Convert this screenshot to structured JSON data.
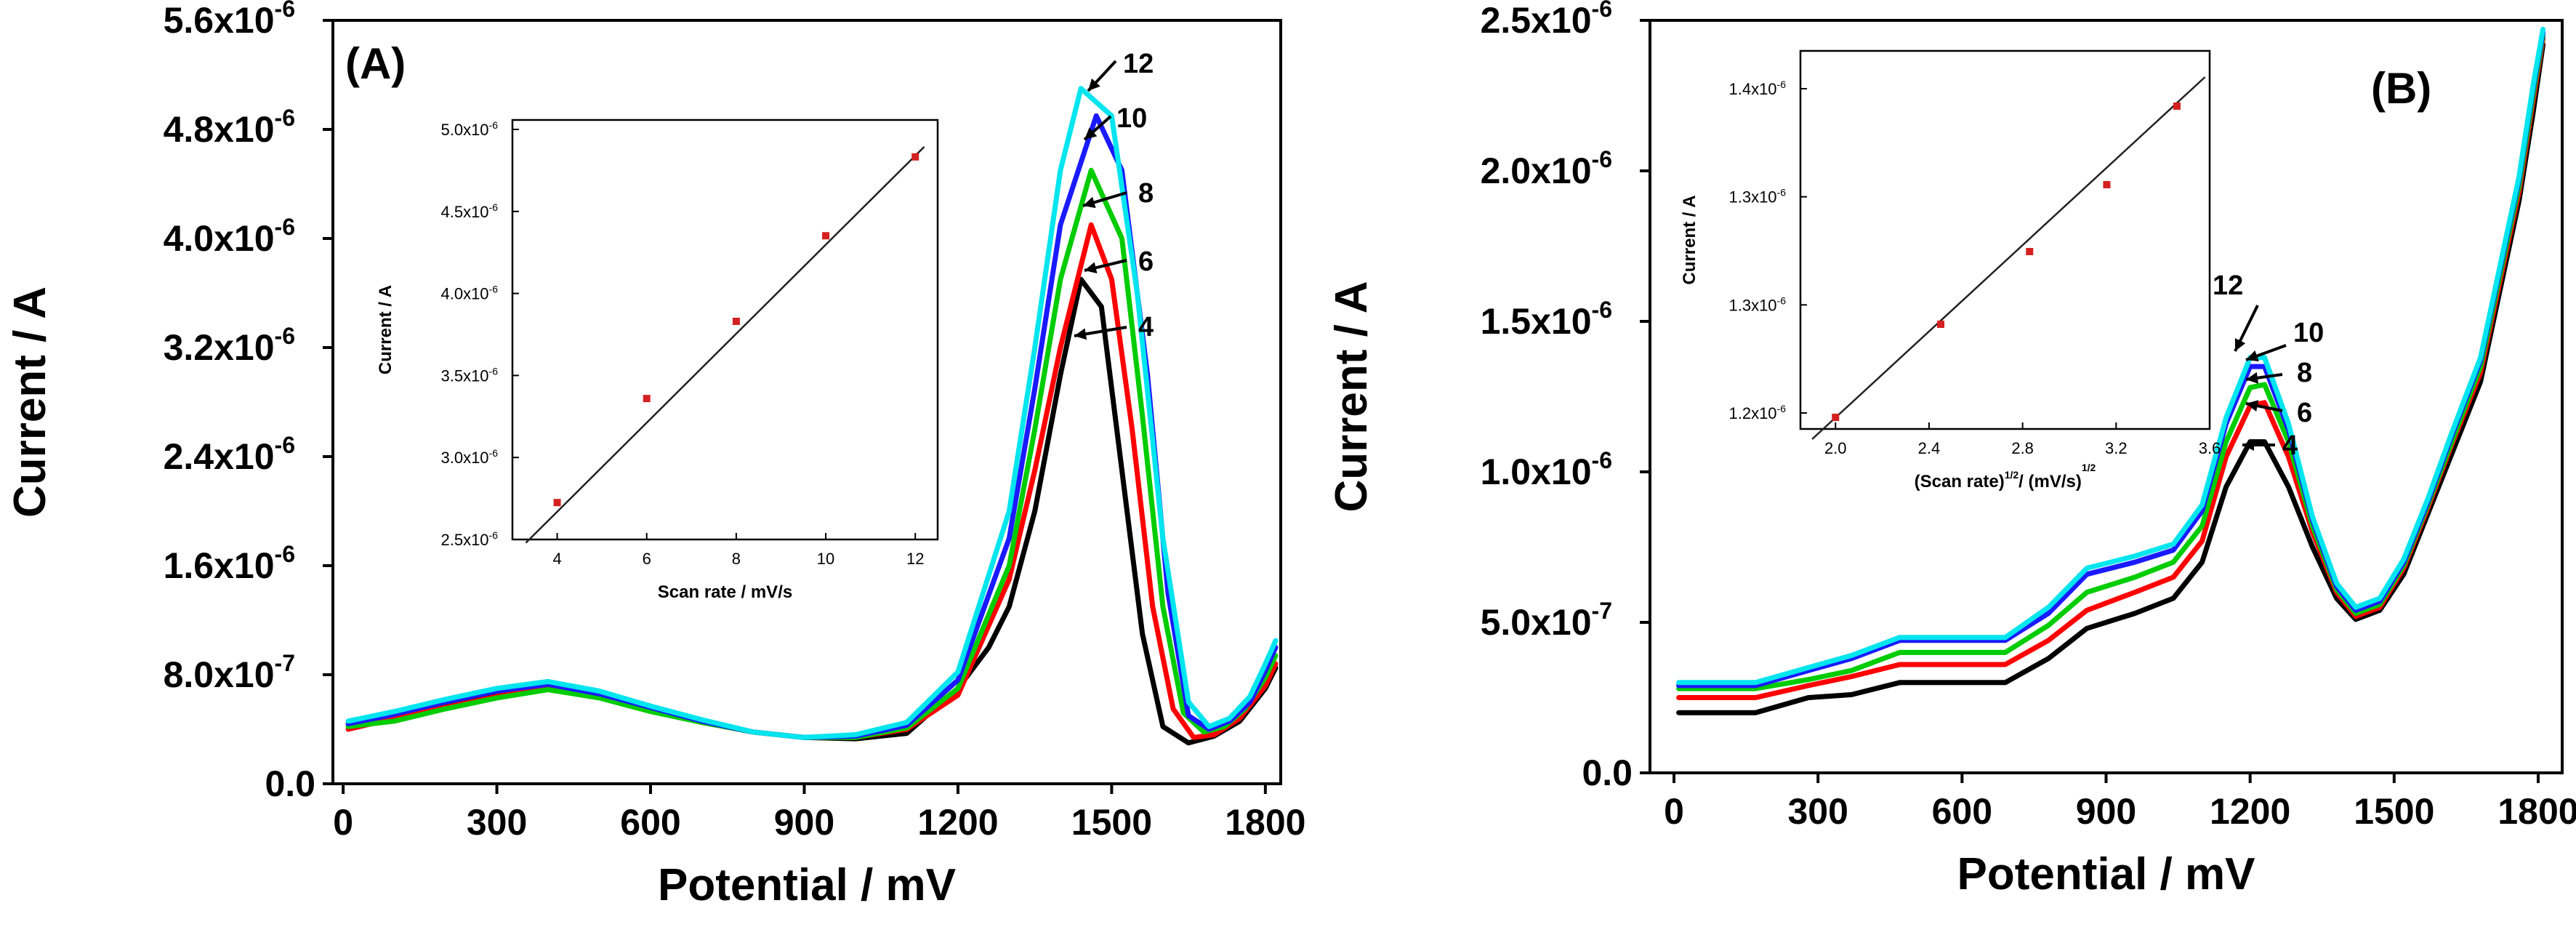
{
  "chart_data": [
    {
      "panel": "(A)",
      "type": "line",
      "xlabel": "Potential / mV",
      "ylabel": "Current / A",
      "xlim": [
        -20,
        1830
      ],
      "ylim": [
        0,
        5.6e-06
      ],
      "xticks": [
        0,
        300,
        600,
        900,
        1200,
        1500,
        1800
      ],
      "yticks": [
        {
          "mantissa": "0.0",
          "exp": ""
        },
        {
          "mantissa": "8.0x10",
          "exp": "-7"
        },
        {
          "mantissa": "1.6x10",
          "exp": "-6"
        },
        {
          "mantissa": "2.4x10",
          "exp": "-6"
        },
        {
          "mantissa": "3.2x10",
          "exp": "-6"
        },
        {
          "mantissa": "4.0x10",
          "exp": "-6"
        },
        {
          "mantissa": "4.8x10",
          "exp": "-6"
        },
        {
          "mantissa": "5.6x10",
          "exp": "-6"
        }
      ],
      "series": [
        {
          "name": "4",
          "color": "#000000",
          "x": [
            10,
            100,
            200,
            300,
            400,
            500,
            600,
            700,
            800,
            900,
            1000,
            1100,
            1200,
            1260,
            1300,
            1350,
            1400,
            1440,
            1480,
            1520,
            1560,
            1600,
            1650,
            1700,
            1750,
            1800,
            1820
          ],
          "y": [
            4.4e-07,
            5e-07,
            5.8e-07,
            6.6e-07,
            7.1e-07,
            6.5e-07,
            5.5e-07,
            4.6e-07,
            3.8e-07,
            3.4e-07,
            3.3e-07,
            3.7e-07,
            7e-07,
            1e-06,
            1.3e-06,
            2e-06,
            3e-06,
            3.7e-06,
            3.5e-06,
            2.3e-06,
            1.1e-06,
            4.2e-07,
            3e-07,
            3.5e-07,
            4.6e-07,
            7e-07,
            8.5e-07
          ]
        },
        {
          "name": "6",
          "color": "#ff0000",
          "x": [
            10,
            100,
            200,
            300,
            400,
            500,
            600,
            700,
            800,
            900,
            1000,
            1100,
            1200,
            1300,
            1350,
            1400,
            1460,
            1500,
            1540,
            1580,
            1620,
            1660,
            1700,
            1750,
            1800,
            1820
          ],
          "y": [
            4e-07,
            4.8e-07,
            5.6e-07,
            6.4e-07,
            7e-07,
            6.4e-07,
            5.4e-07,
            4.5e-07,
            3.8e-07,
            3.4e-07,
            3.4e-07,
            4e-07,
            6.5e-07,
            1.5e-06,
            2.3e-06,
            3.2e-06,
            4.1e-06,
            3.7e-06,
            2.6e-06,
            1.3e-06,
            5.5e-07,
            3.4e-07,
            3.6e-07,
            4.8e-07,
            7.2e-07,
            8.8e-07
          ]
        },
        {
          "name": "8",
          "color": "#00cc00",
          "x": [
            10,
            100,
            200,
            300,
            400,
            500,
            600,
            700,
            800,
            900,
            1000,
            1100,
            1200,
            1300,
            1350,
            1400,
            1460,
            1520,
            1560,
            1600,
            1640,
            1680,
            1720,
            1760,
            1800,
            1820
          ],
          "y": [
            4.2e-07,
            4.6e-07,
            5.5e-07,
            6.3e-07,
            6.9e-07,
            6.3e-07,
            5.3e-07,
            4.5e-07,
            3.8e-07,
            3.4e-07,
            3.4e-07,
            4.1e-07,
            7e-07,
            1.6e-06,
            2.6e-06,
            3.7e-06,
            4.5e-06,
            4e-06,
            2.7e-06,
            1.3e-06,
            5.2e-07,
            3.8e-07,
            4.2e-07,
            5.5e-07,
            7.8e-07,
            9.4e-07
          ]
        },
        {
          "name": "10",
          "color": "#1a1aff",
          "x": [
            10,
            100,
            200,
            300,
            400,
            500,
            600,
            700,
            800,
            900,
            1000,
            1100,
            1200,
            1300,
            1350,
            1400,
            1470,
            1520,
            1570,
            1610,
            1650,
            1690,
            1730,
            1770,
            1800,
            1820
          ],
          "y": [
            4.4e-07,
            5.1e-07,
            6e-07,
            6.8e-07,
            7.3e-07,
            6.6e-07,
            5.6e-07,
            4.6e-07,
            3.8e-07,
            3.4e-07,
            3.5e-07,
            4.3e-07,
            7.6e-07,
            1.8e-06,
            2.9e-06,
            4.1e-06,
            4.9e-06,
            4.5e-06,
            3e-06,
            1.4e-06,
            5e-07,
            4e-07,
            4.6e-07,
            6e-07,
            8.3e-07,
            1e-06
          ]
        },
        {
          "name": "12",
          "color": "#00e5ee",
          "x": [
            10,
            100,
            200,
            300,
            400,
            500,
            600,
            700,
            800,
            900,
            1000,
            1100,
            1200,
            1300,
            1350,
            1400,
            1440,
            1500,
            1550,
            1600,
            1650,
            1690,
            1730,
            1770,
            1800,
            1820
          ],
          "y": [
            4.6e-07,
            5.3e-07,
            6.2e-07,
            7e-07,
            7.5e-07,
            6.8e-07,
            5.7e-07,
            4.7e-07,
            3.8e-07,
            3.4e-07,
            3.6e-07,
            4.5e-07,
            8.2e-07,
            2e-06,
            3.2e-06,
            4.5e-06,
            5.1e-06,
            4.9e-06,
            3.6e-06,
            1.8e-06,
            6e-07,
            4.2e-07,
            4.8e-07,
            6.4e-07,
            8.8e-07,
            1.05e-06
          ]
        }
      ],
      "curve_labels": [
        "12",
        "10",
        "8",
        "6",
        "4"
      ],
      "inset": {
        "type": "scatter",
        "xlabel": "Scan rate / mV/s",
        "ylabel": "Current / A",
        "xlim": [
          3,
          12.5
        ],
        "ylim": [
          2.5e-06,
          5e-06
        ],
        "xticks": [
          4,
          6,
          8,
          10,
          12
        ],
        "yticks": [
          {
            "mantissa": "2.5x10",
            "exp": "-6"
          },
          {
            "mantissa": "3.0x10",
            "exp": "-6"
          },
          {
            "mantissa": "3.5x10",
            "exp": "-6"
          },
          {
            "mantissa": "4.0x10",
            "exp": "-6"
          },
          {
            "mantissa": "4.5x10",
            "exp": "-6"
          },
          {
            "mantissa": "5.0x10",
            "exp": "-6"
          }
        ],
        "points": [
          {
            "x": 4,
            "y": 2.72e-06
          },
          {
            "x": 6,
            "y": 3.34e-06
          },
          {
            "x": 8,
            "y": 3.8e-06
          },
          {
            "x": 10,
            "y": 4.31e-06
          },
          {
            "x": 12,
            "y": 4.78e-06
          }
        ],
        "fit": {
          "x": [
            3.3,
            12.2
          ],
          "y": [
            2.48e-06,
            4.84e-06
          ]
        }
      }
    },
    {
      "panel": "(B)",
      "type": "line",
      "xlabel": "Potential / mV",
      "ylabel": "Current / A",
      "xlim": [
        -50,
        1850
      ],
      "ylim": [
        0,
        2.5e-06
      ],
      "xticks": [
        0,
        300,
        600,
        900,
        1200,
        1500,
        1800
      ],
      "yticks": [
        {
          "mantissa": "0.0",
          "exp": ""
        },
        {
          "mantissa": "5.0x10",
          "exp": "-7"
        },
        {
          "mantissa": "1.0x10",
          "exp": "-6"
        },
        {
          "mantissa": "1.5x10",
          "exp": "-6"
        },
        {
          "mantissa": "2.0x10",
          "exp": "-6"
        },
        {
          "mantissa": "2.5x10",
          "exp": "-6"
        }
      ],
      "series": [
        {
          "name": "4",
          "color": "#000000",
          "x": [
            10,
            170,
            280,
            370,
            470,
            560,
            690,
            780,
            860,
            960,
            1040,
            1100,
            1150,
            1200,
            1230,
            1280,
            1330,
            1380,
            1420,
            1470,
            1520,
            1570,
            1620,
            1680,
            1720,
            1760,
            1790,
            1810
          ],
          "y": [
            2e-07,
            2e-07,
            2.5e-07,
            2.6e-07,
            3e-07,
            3e-07,
            3e-07,
            3.8e-07,
            4.8e-07,
            5.3e-07,
            5.8e-07,
            7e-07,
            9.5e-07,
            1.1e-06,
            1.1e-06,
            9.5e-07,
            7.5e-07,
            5.8e-07,
            5.1e-07,
            5.4e-07,
            6.6e-07,
            8.6e-07,
            1.06e-06,
            1.3e-06,
            1.6e-06,
            1.9e-06,
            2.2e-06,
            2.42e-06
          ]
        },
        {
          "name": "6",
          "color": "#ff0000",
          "x": [
            10,
            170,
            280,
            370,
            470,
            560,
            690,
            780,
            860,
            960,
            1040,
            1100,
            1150,
            1200,
            1230,
            1280,
            1330,
            1380,
            1420,
            1470,
            1520,
            1570,
            1620,
            1680,
            1720,
            1760,
            1790,
            1810
          ],
          "y": [
            2.5e-07,
            2.5e-07,
            2.9e-07,
            3.2e-07,
            3.6e-07,
            3.6e-07,
            3.6e-07,
            4.4e-07,
            5.4e-07,
            6e-07,
            6.5e-07,
            7.7e-07,
            1.05e-06,
            1.22e-06,
            1.23e-06,
            1.05e-06,
            8e-07,
            6e-07,
            5.2e-07,
            5.5e-07,
            6.8e-07,
            8.8e-07,
            1.09e-06,
            1.33e-06,
            1.63e-06,
            1.93e-06,
            2.24e-06,
            2.44e-06
          ]
        },
        {
          "name": "8",
          "color": "#00cc00",
          "x": [
            10,
            170,
            280,
            370,
            470,
            560,
            690,
            780,
            860,
            960,
            1040,
            1100,
            1150,
            1200,
            1230,
            1280,
            1330,
            1380,
            1420,
            1470,
            1520,
            1570,
            1620,
            1680,
            1720,
            1760,
            1790,
            1810
          ],
          "y": [
            2.8e-07,
            2.8e-07,
            3.1e-07,
            3.4e-07,
            4e-07,
            4e-07,
            4e-07,
            4.9e-07,
            6e-07,
            6.5e-07,
            7e-07,
            8.2e-07,
            1.1e-06,
            1.28e-06,
            1.29e-06,
            1.1e-06,
            8.2e-07,
            6.1e-07,
            5.3e-07,
            5.6e-07,
            6.9e-07,
            8.9e-07,
            1.1e-06,
            1.35e-06,
            1.65e-06,
            1.95e-06,
            2.26e-06,
            2.45e-06
          ]
        },
        {
          "name": "10",
          "color": "#1a1aff",
          "x": [
            10,
            170,
            280,
            370,
            470,
            560,
            690,
            780,
            860,
            960,
            1040,
            1100,
            1150,
            1200,
            1230,
            1280,
            1330,
            1380,
            1420,
            1470,
            1520,
            1570,
            1620,
            1680,
            1720,
            1760,
            1790,
            1810
          ],
          "y": [
            2.9e-07,
            2.9e-07,
            3.4e-07,
            3.8e-07,
            4.4e-07,
            4.4e-07,
            4.4e-07,
            5.3e-07,
            6.6e-07,
            7e-07,
            7.4e-07,
            8.7e-07,
            1.16e-06,
            1.35e-06,
            1.35e-06,
            1.14e-06,
            8.4e-07,
            6.2e-07,
            5.4e-07,
            5.7e-07,
            7e-07,
            9e-07,
            1.12e-06,
            1.37e-06,
            1.67e-06,
            1.97e-06,
            2.28e-06,
            2.46e-06
          ]
        },
        {
          "name": "12",
          "color": "#00e5ee",
          "x": [
            10,
            170,
            280,
            370,
            470,
            560,
            690,
            780,
            860,
            960,
            1040,
            1100,
            1150,
            1200,
            1230,
            1280,
            1330,
            1380,
            1420,
            1470,
            1520,
            1570,
            1620,
            1680,
            1720,
            1760,
            1790,
            1810
          ],
          "y": [
            3e-07,
            3e-07,
            3.5e-07,
            3.9e-07,
            4.5e-07,
            4.5e-07,
            4.5e-07,
            5.5e-07,
            6.8e-07,
            7.2e-07,
            7.6e-07,
            8.9e-07,
            1.18e-06,
            1.38e-06,
            1.38e-06,
            1.16e-06,
            8.5e-07,
            6.3e-07,
            5.5e-07,
            5.8e-07,
            7.1e-07,
            9.1e-07,
            1.13e-06,
            1.38e-06,
            1.68e-06,
            1.98e-06,
            2.29e-06,
            2.47e-06
          ]
        }
      ],
      "curve_labels": [
        "12",
        "10",
        "8",
        "6",
        "4"
      ],
      "inset": {
        "type": "scatter",
        "xlabel": "(Scan rate)",
        "xlabel_exp": "1/2",
        "xlabel_mid": "/ (mV/s)",
        "xlabel_exp2": "1/2",
        "ylabel": "Current / A",
        "xlim": [
          1.85,
          3.6
        ],
        "ylim": [
          1.19e-06,
          1.45e-06
        ],
        "xticks": [
          "2.0",
          "2.4",
          "2.8",
          "3.2",
          "3.6"
        ],
        "yticks": [
          {
            "mantissa": "1.2x10",
            "exp": "-6"
          },
          {
            "mantissa": "1.3x10",
            "exp": "-6"
          },
          {
            "mantissa": "1.3x10",
            "exp": "-6"
          },
          {
            "mantissa": "1.4x10",
            "exp": "-6"
          }
        ],
        "points": [
          {
            "x": 2.0,
            "y": 1.198e-06
          },
          {
            "x": 2.45,
            "y": 1.262e-06
          },
          {
            "x": 2.83,
            "y": 1.312e-06
          },
          {
            "x": 3.16,
            "y": 1.358e-06
          },
          {
            "x": 3.46,
            "y": 1.412e-06
          }
        ],
        "fit": {
          "x": [
            1.9,
            3.58
          ],
          "y": [
            1.183e-06,
            1.432e-06
          ]
        }
      }
    }
  ]
}
